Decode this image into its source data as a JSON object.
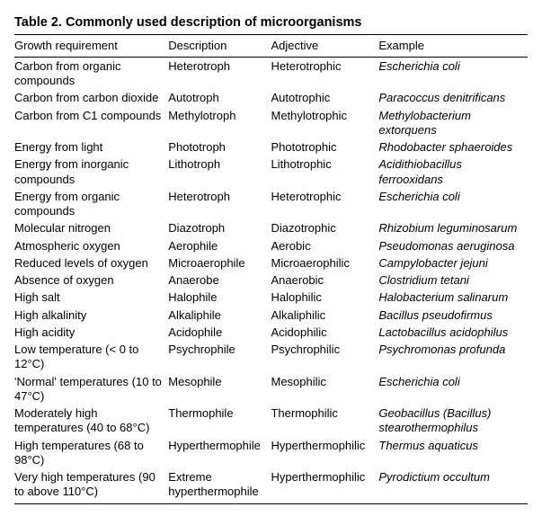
{
  "title": "Table 2.  Commonly used description of microorganisms",
  "columns": [
    "Growth requirement",
    "Description",
    "Adjective",
    "Example"
  ],
  "rows": [
    {
      "req": "Carbon from organic compounds",
      "desc": "Heterotroph",
      "adj": "Heterotrophic",
      "ex": "Escherichia coli"
    },
    {
      "req": "Carbon from carbon dioxide",
      "desc": "Autotroph",
      "adj": "Autotrophic",
      "ex": "Paracoccus denitrificans"
    },
    {
      "req": "Carbon from C1 compounds",
      "desc": "Methylotroph",
      "adj": "Methylotrophic",
      "ex": "Methylobacterium extorquens"
    },
    {
      "req": "Energy from light",
      "desc": "Phototroph",
      "adj": "Phototrophic",
      "ex": "Rhodobacter sphaeroides"
    },
    {
      "req": "Energy from inorganic compounds",
      "desc": "Lithotroph",
      "adj": "Lithotrophic",
      "ex": "Acidithiobacillus ferrooxidans"
    },
    {
      "req": "Energy from organic compounds",
      "desc": "Heterotroph",
      "adj": "Heterotrophic",
      "ex": "Escherichia coli"
    },
    {
      "req": "Molecular nitrogen",
      "desc": "Diazotroph",
      "adj": "Diazotrophic",
      "ex": "Rhizobium leguminosarum"
    },
    {
      "req": "Atmospheric oxygen",
      "desc": "Aerophile",
      "adj": "Aerobic",
      "ex": "Pseudomonas aeruginosa"
    },
    {
      "req": "Reduced levels of oxygen",
      "desc": "Microaerophile",
      "adj": "Microaerophilic",
      "ex": "Campylobacter jejuni"
    },
    {
      "req": "Absence of oxygen",
      "desc": "Anaerobe",
      "adj": "Anaerobic",
      "ex": "Clostridium tetani"
    },
    {
      "req": "High salt",
      "desc": "Halophile",
      "adj": "Halophilic",
      "ex": "Halobacterium salinarum"
    },
    {
      "req": "High alkalinity",
      "desc": "Alkaliphile",
      "adj": "Alkaliphilic",
      "ex": "Bacillus pseudofirmus"
    },
    {
      "req": "High acidity",
      "desc": "Acidophile",
      "adj": "Acidophilic",
      "ex": "Lactobacillus acidophilus"
    },
    {
      "req": "Low temperature (< 0 to 12°C)",
      "desc": "Psychrophile",
      "adj": "Psychrophilic",
      "ex": "Psychromonas profunda"
    },
    {
      "req": "'Normal' temperatures (10 to 47°C)",
      "desc": "Mesophile",
      "adj": "Mesophilic",
      "ex": "Escherichia coli"
    },
    {
      "req": "Moderately high temperatures (40 to 68°C)",
      "desc": "Thermophile",
      "adj": "Thermophilic",
      "ex": "Geobacillus (Bacillus) stearothermophilus"
    },
    {
      "req": "High temperatures (68 to 98°C)",
      "desc": "Hyperthermophile",
      "adj": "Hyperthermophilic",
      "ex": "Thermus aquaticus"
    },
    {
      "req": "Very high temperatures (90 to above 110°C)",
      "desc": "Extreme hyperthermophile",
      "adj": "Hyperthermophilic",
      "ex": "Pyrodictium occultum"
    }
  ]
}
